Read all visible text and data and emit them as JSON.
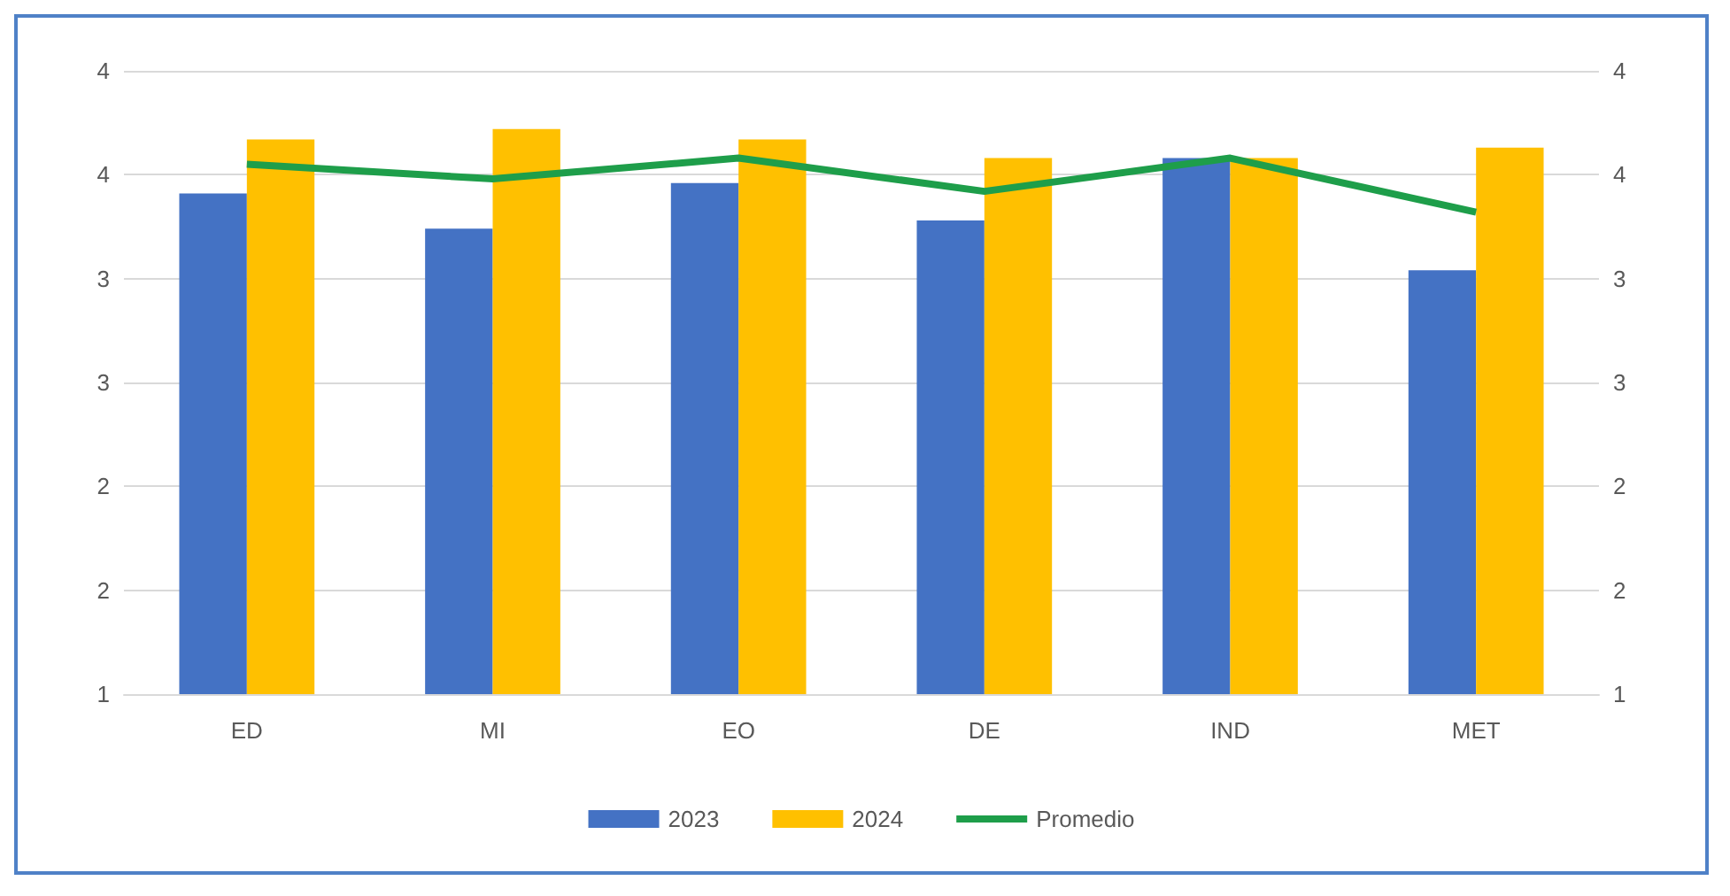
{
  "chart_data": {
    "type": "bar",
    "categories": [
      "ED",
      "MI",
      "EO",
      "DE",
      "IND",
      "MET"
    ],
    "series": [
      {
        "name": "2023",
        "color": "#4472c4",
        "values": [
          3.41,
          3.24,
          3.46,
          3.28,
          3.58,
          3.04
        ]
      },
      {
        "name": "2024",
        "color": "#ffc000",
        "values": [
          3.67,
          3.72,
          3.67,
          3.58,
          3.58,
          3.63
        ]
      },
      {
        "name": "Promedio",
        "type": "line",
        "color": "#1e9e4a",
        "marker": "none",
        "values": [
          3.55,
          3.48,
          3.58,
          3.42,
          3.58,
          3.32
        ]
      }
    ],
    "ylim": [
      1,
      4
    ],
    "yticks": [
      1,
      {
        "value": 1.5,
        "label": "2"
      },
      2,
      {
        "value": 2.5,
        "label": "3"
      },
      3,
      {
        "value": 3.5,
        "label": "4"
      },
      4
    ],
    "y2lim": [
      1,
      4
    ],
    "y2ticks": [
      1,
      {
        "value": 1.5,
        "label": "2"
      },
      2,
      {
        "value": 2.5,
        "label": "3"
      },
      3,
      {
        "value": 3.5,
        "label": "4"
      },
      4
    ],
    "grid": "y",
    "legend": "bottom"
  }
}
